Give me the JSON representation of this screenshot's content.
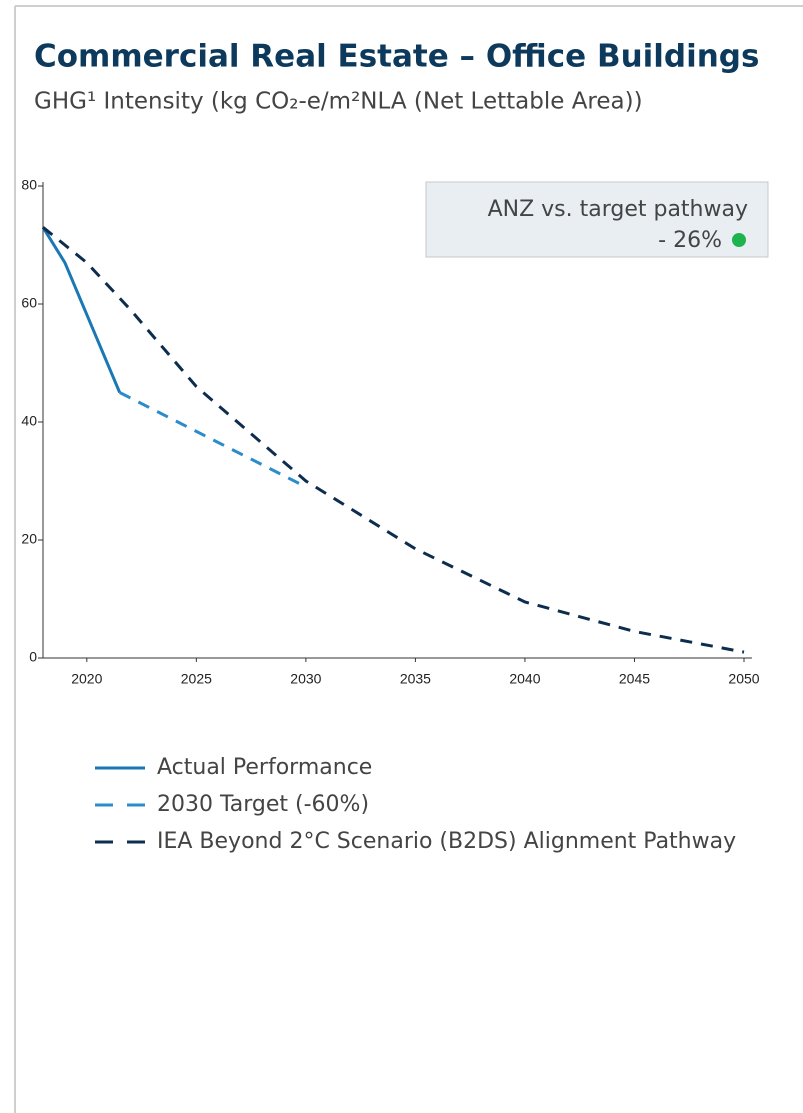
{
  "chart_data": {
    "type": "line",
    "title": "Commercial Real Estate – Office Buildings",
    "subtitle": "GHG¹ Intensity (kg CO₂-e/m²NLA (Net Lettable Area))",
    "annotation": {
      "text": "ANZ vs. target pathway",
      "value_text": "- 26%",
      "dot_color": "#1db34f"
    },
    "xlim": [
      2018,
      2050
    ],
    "xticks": [
      2020,
      2025,
      2030,
      2035,
      2040,
      2045,
      2050
    ],
    "ylim": [
      0,
      80
    ],
    "yticks": [
      0,
      20,
      40,
      60,
      80
    ],
    "series": [
      {
        "name": "Actual Performance",
        "color": "#1a78b4",
        "line_style": "solid",
        "x": [
          2018,
          2019,
          2021.5
        ],
        "values": [
          73,
          67,
          45
        ]
      },
      {
        "name": "2030 Target (-60%)",
        "color": "#2a8ccb",
        "line_style": "dashed",
        "x": [
          2021.5,
          2030
        ],
        "values": [
          45,
          29
        ]
      },
      {
        "name": "IEA Beyond 2°C Scenario (B2DS) Alignment Pathway",
        "color": "#0d2d4f",
        "line_style": "dashed",
        "x": [
          2018,
          2020,
          2022,
          2025,
          2030,
          2035,
          2040,
          2045,
          2050
        ],
        "values": [
          73,
          67,
          59,
          46,
          30,
          18.5,
          9.5,
          4.5,
          1
        ]
      }
    ]
  }
}
